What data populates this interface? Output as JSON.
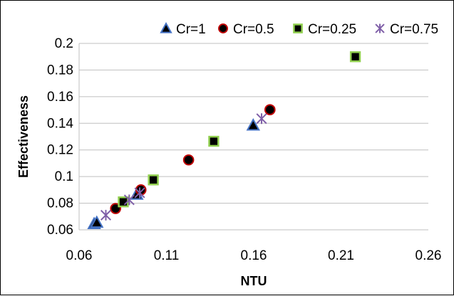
{
  "chart_data": {
    "type": "scatter",
    "title": "",
    "xlabel": "NTU",
    "ylabel": "Effectiveness",
    "xlim": [
      0.06,
      0.26
    ],
    "ylim": [
      0.06,
      0.2
    ],
    "x_ticks": [
      "0.06",
      "0.11",
      "0.16",
      "0.21",
      "0.26"
    ],
    "y_ticks": [
      "0.06",
      "0.08",
      "0.1",
      "0.12",
      "0.14",
      "0.16",
      "0.18",
      "0.2"
    ],
    "grid": "horizontal",
    "legend_position": "top",
    "series": [
      {
        "name": "Cr=1",
        "marker": "triangle",
        "fill": "#000000",
        "stroke": "#4472C4",
        "points": [
          {
            "x": 0.0686,
            "y": 0.0645
          },
          {
            "x": 0.0701,
            "y": 0.0655
          },
          {
            "x": 0.093,
            "y": 0.0865
          },
          {
            "x": 0.1597,
            "y": 0.1385
          }
        ]
      },
      {
        "name": "Cr=0.5",
        "marker": "circle",
        "fill": "#000000",
        "stroke": "#C00000",
        "points": [
          {
            "x": 0.0809,
            "y": 0.076
          },
          {
            "x": 0.0954,
            "y": 0.09
          },
          {
            "x": 0.1227,
            "y": 0.1125
          },
          {
            "x": 0.1693,
            "y": 0.1502
          }
        ]
      },
      {
        "name": "Cr=0.25",
        "marker": "square",
        "fill": "#000000",
        "stroke": "#92D050",
        "points": [
          {
            "x": 0.0853,
            "y": 0.081
          },
          {
            "x": 0.1025,
            "y": 0.0975
          },
          {
            "x": 0.1371,
            "y": 0.1265
          },
          {
            "x": 0.2182,
            "y": 0.19
          }
        ]
      },
      {
        "name": "Cr=0.75",
        "marker": "star",
        "fill": "none",
        "stroke": "#7F5FA8",
        "points": [
          {
            "x": 0.0753,
            "y": 0.071
          },
          {
            "x": 0.0887,
            "y": 0.0825
          },
          {
            "x": 0.0947,
            "y": 0.0878
          },
          {
            "x": 0.1645,
            "y": 0.1435
          }
        ]
      }
    ]
  }
}
